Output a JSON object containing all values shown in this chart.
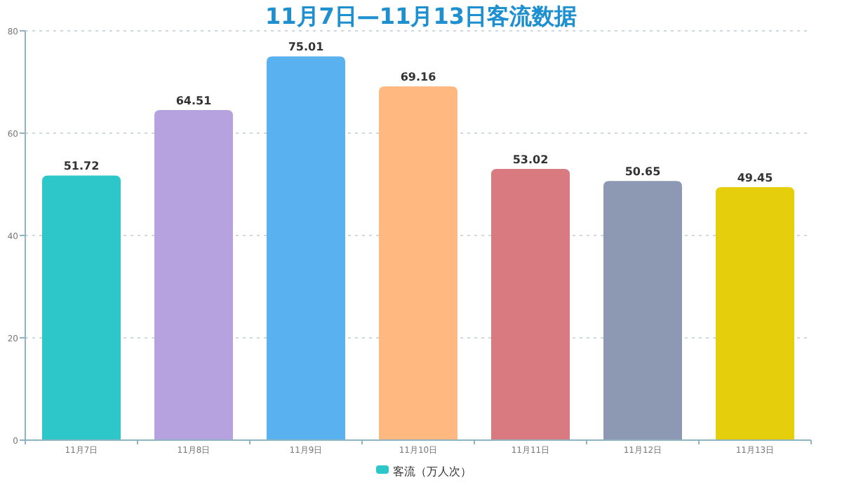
{
  "chart_data": {
    "type": "bar",
    "title": "11月7日—11月13日客流数据",
    "categories": [
      "11月7日",
      "11月8日",
      "11月9日",
      "11月10日",
      "11月11日",
      "11月12日",
      "11月13日"
    ],
    "series": [
      {
        "name": "客流（万人次）",
        "color": "#2ec7c9",
        "colors": [
          "#2ec7c9",
          "#b6a2de",
          "#5ab1ef",
          "#ffb980",
          "#d87a80",
          "#8d98b3",
          "#e5cf0d"
        ],
        "values": [
          51.72,
          64.51,
          75.01,
          69.16,
          53.02,
          50.65,
          49.45
        ]
      }
    ],
    "ylim": [
      0,
      80
    ],
    "yticks": [
      0,
      20,
      40,
      60,
      80
    ],
    "grid": "y",
    "data_labels": true,
    "legend": "bottom"
  }
}
